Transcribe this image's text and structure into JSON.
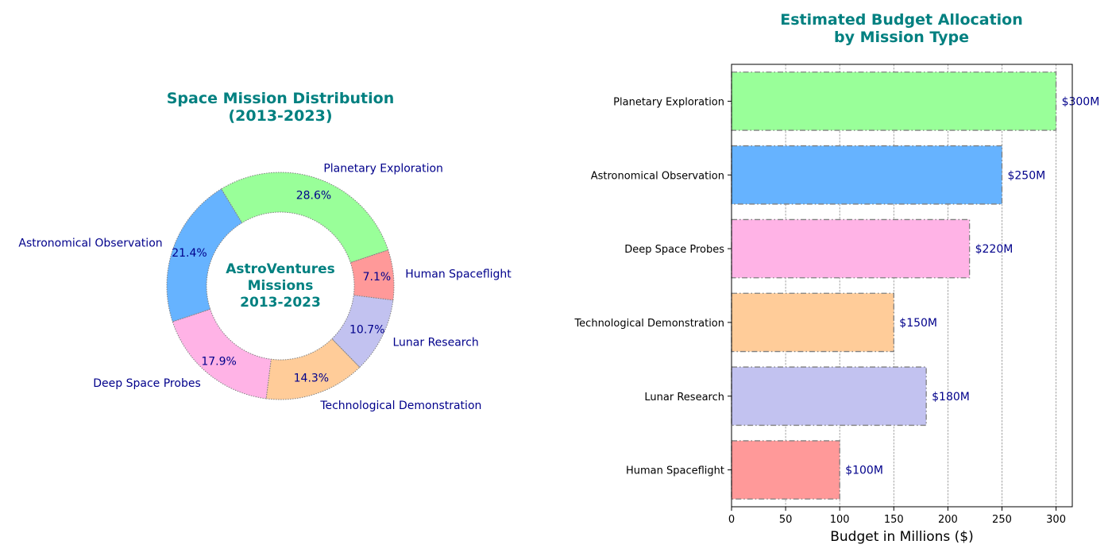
{
  "chart_data": [
    {
      "type": "pie",
      "title": "Space Mission Distribution\n(2013-2023)",
      "center_text": "AstroVentures\nMissions\n2013-2023",
      "categories": [
        "Planetary Exploration",
        "Astronomical Observation",
        "Deep Space Probes",
        "Technological Demonstration",
        "Lunar Research",
        "Human Spaceflight"
      ],
      "values": [
        28.6,
        21.4,
        17.9,
        14.3,
        10.7,
        7.1
      ],
      "labels": [
        "28.6%",
        "21.4%",
        "17.9%",
        "14.3%",
        "10.7%",
        "7.1%"
      ],
      "colors": [
        "#99ff99",
        "#66b3ff",
        "#ffb3e6",
        "#ffcc99",
        "#c2c2f0",
        "#ff9999"
      ],
      "donut": true
    },
    {
      "type": "bar",
      "orientation": "horizontal",
      "title": "Estimated Budget Allocation\nby Mission Type",
      "categories": [
        "Human Spaceflight",
        "Lunar Research",
        "Technological Demonstration",
        "Deep Space Probes",
        "Astronomical Observation",
        "Planetary Exploration"
      ],
      "values": [
        100,
        180,
        150,
        220,
        250,
        300
      ],
      "data_labels": [
        "$100M",
        "$180M",
        "$150M",
        "$220M",
        "$250M",
        "$300M"
      ],
      "colors": [
        "#ff9999",
        "#c2c2f0",
        "#ffcc99",
        "#ffb3e6",
        "#66b3ff",
        "#99ff99"
      ],
      "xlabel": "Budget in Millions ($)",
      "xticks": [
        0,
        50,
        100,
        150,
        200,
        250,
        300
      ],
      "xlim": [
        0,
        315
      ],
      "grid": "x"
    }
  ],
  "colors": {
    "title": "#008080",
    "label_text": "#00008b",
    "edge": "#808080"
  }
}
